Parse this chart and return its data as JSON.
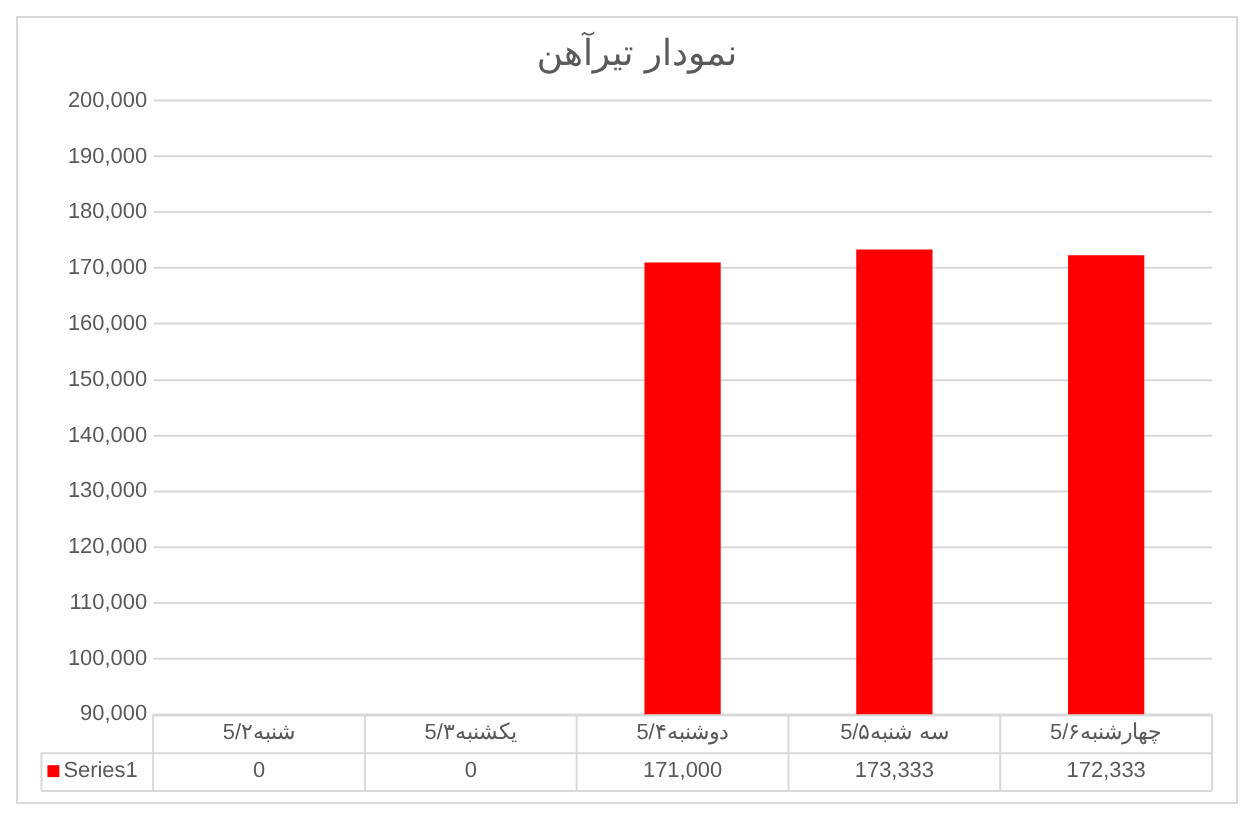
{
  "chart_data": {
    "type": "bar",
    "title": "نمودار تیرآهن",
    "categories": [
      "5/۲شنبه",
      "5/۳یکشنبه",
      "5/۴دوشنبه",
      "5/۵سه شنبه",
      "5/۶چهارشنبه"
    ],
    "series": [
      {
        "name": "Series1",
        "color": "#ff0000",
        "values": [
          null,
          null,
          171000,
          173333,
          172333
        ],
        "value_labels": [
          "0",
          "0",
          "171,000",
          "173,333",
          "172,333"
        ]
      }
    ],
    "ylim": [
      90000,
      200000
    ],
    "yticks": [
      {
        "value": 90000,
        "label": "90,000"
      },
      {
        "value": 100000,
        "label": "100,000"
      },
      {
        "value": 110000,
        "label": "110,000"
      },
      {
        "value": 120000,
        "label": "120,000"
      },
      {
        "value": 130000,
        "label": "130,000"
      },
      {
        "value": 140000,
        "label": "140,000"
      },
      {
        "value": 150000,
        "label": "150,000"
      },
      {
        "value": 160000,
        "label": "160,000"
      },
      {
        "value": 170000,
        "label": "170,000"
      },
      {
        "value": 180000,
        "label": "180,000"
      },
      {
        "value": 190000,
        "label": "190,000"
      },
      {
        "value": 200000,
        "label": "200,000"
      }
    ],
    "grid": "y"
  }
}
